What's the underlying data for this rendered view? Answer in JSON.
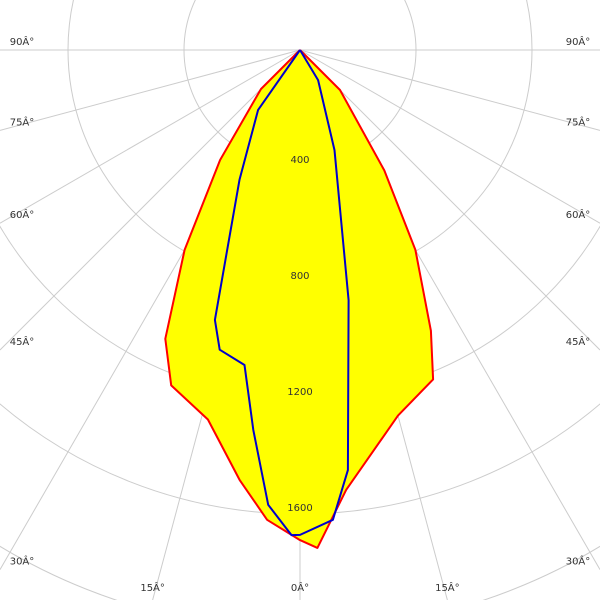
{
  "chart_data": {
    "type": "polar",
    "rlim": [
      0,
      2000
    ],
    "rticks": [
      400,
      800,
      1200,
      1600
    ],
    "thetaticks": [
      {
        "value": -90,
        "label": "90Â°"
      },
      {
        "value": -75,
        "label": "75Â°"
      },
      {
        "value": -60,
        "label": "60Â°"
      },
      {
        "value": -45,
        "label": "45Â°"
      },
      {
        "value": -30,
        "label": "30Â°"
      },
      {
        "value": -15,
        "label": "15Â°"
      },
      {
        "value": 0,
        "label": "0Â°"
      },
      {
        "value": 15,
        "label": "15Â°"
      },
      {
        "value": 30,
        "label": "30Â°"
      },
      {
        "value": 45,
        "label": "45Â°"
      },
      {
        "value": 60,
        "label": "60Â°"
      },
      {
        "value": 75,
        "label": "75Â°"
      },
      {
        "value": 90,
        "label": "90Â°"
      }
    ],
    "series": [
      {
        "color": "#ff0000",
        "fill": "#ffff00",
        "theta": [
          -90,
          -45,
          -36,
          -30,
          -25,
          -21,
          -14,
          -8,
          -4,
          0,
          2,
          6,
          15,
          22,
          25,
          30,
          35,
          45,
          90
        ],
        "values": [
          0,
          190,
          469,
          796,
          1099,
          1239,
          1313,
          1497,
          1624,
          1690,
          1718,
          1525,
          1305,
          1225,
          1068,
          796,
          507,
          195,
          0
        ]
      },
      {
        "color": "#0000cc",
        "theta": [
          -90,
          -35,
          -25,
          -17.5,
          -15,
          -10,
          -7,
          -4,
          -1,
          0,
          4,
          6.5,
          11,
          19,
          31,
          90
        ],
        "values": [
          0,
          252,
          494,
          976,
          1070,
          1103,
          1320,
          1572,
          1673,
          1672,
          1624,
          1458,
          879,
          365,
          121,
          0
        ]
      }
    ]
  }
}
